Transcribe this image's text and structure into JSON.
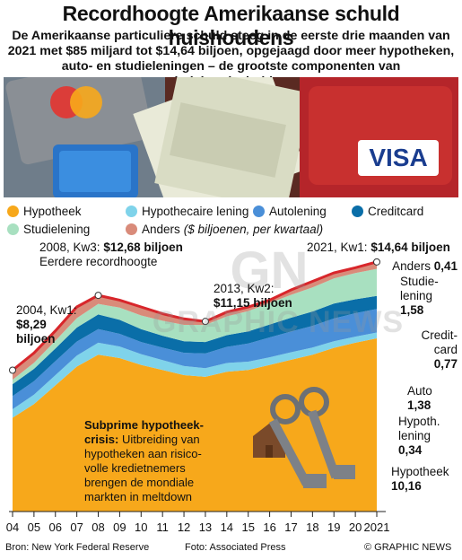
{
  "title": "Recordhoogte Amerikaanse schuld huishoudens",
  "subtitle": "De Amerikaanse particuliere schuld steeg in de eerste drie maanden van 2021 met $85 miljard tot $14,64 biljoen, opgejaagd door meer hypotheken, auto- en studieleningen – de grootste componenten van huishoudschulden",
  "legend": {
    "items": [
      {
        "label": "Hypotheek",
        "color": "#f7a81b"
      },
      {
        "label": "Hypothecaire lening",
        "color": "#7fd3ea"
      },
      {
        "label": "Autolening",
        "color": "#4a8fd8"
      },
      {
        "label": "Creditcard",
        "color": "#0a6ea8"
      },
      {
        "label": "Studielening",
        "color": "#a8e0c0"
      },
      {
        "label": "Anders",
        "color": "#d98b7a"
      }
    ],
    "note": "($ biljoenen, per kwartaal)"
  },
  "chart_data": {
    "type": "area",
    "x": [
      2004,
      2005,
      2006,
      2007,
      2008,
      2009,
      2010,
      2011,
      2012,
      2013,
      2014,
      2015,
      2016,
      2017,
      2018,
      2019,
      2020,
      2021
    ],
    "total": [
      8.29,
      9.3,
      10.6,
      12.0,
      12.68,
      12.4,
      12.0,
      11.6,
      11.3,
      11.15,
      11.7,
      12.0,
      12.4,
      13.0,
      13.5,
      14.0,
      14.3,
      14.64
    ],
    "series": [
      {
        "name": "Hypotheek",
        "values": [
          5.5,
          6.3,
          7.4,
          8.5,
          9.2,
          9.0,
          8.6,
          8.3,
          8.0,
          7.9,
          8.2,
          8.3,
          8.6,
          8.9,
          9.2,
          9.6,
          9.9,
          10.16
        ]
      },
      {
        "name": "Hypothecaire lening",
        "values": [
          0.5,
          0.55,
          0.6,
          0.65,
          0.7,
          0.68,
          0.63,
          0.58,
          0.53,
          0.51,
          0.51,
          0.49,
          0.45,
          0.44,
          0.42,
          0.39,
          0.36,
          0.34
        ]
      },
      {
        "name": "Autolening",
        "values": [
          0.77,
          0.8,
          0.82,
          0.82,
          0.8,
          0.74,
          0.71,
          0.73,
          0.78,
          0.86,
          0.95,
          1.06,
          1.16,
          1.22,
          1.27,
          1.33,
          1.37,
          1.38
        ]
      },
      {
        "name": "Creditcard",
        "values": [
          0.7,
          0.72,
          0.75,
          0.82,
          0.86,
          0.82,
          0.76,
          0.7,
          0.68,
          0.67,
          0.68,
          0.72,
          0.76,
          0.81,
          0.84,
          0.88,
          0.82,
          0.77
        ]
      },
      {
        "name": "Studielening",
        "values": [
          0.26,
          0.35,
          0.45,
          0.55,
          0.62,
          0.72,
          0.8,
          0.88,
          0.96,
          1.0,
          1.11,
          1.19,
          1.26,
          1.34,
          1.41,
          1.47,
          1.54,
          1.58
        ]
      },
      {
        "name": "Anders",
        "values": [
          0.56,
          0.58,
          0.58,
          0.66,
          0.5,
          0.44,
          0.5,
          0.41,
          0.35,
          0.21,
          0.25,
          0.24,
          0.17,
          0.29,
          0.36,
          0.33,
          0.31,
          0.41
        ]
      }
    ],
    "x_ticks": [
      "04",
      "05",
      "06",
      "07",
      "08",
      "09",
      "10",
      "11",
      "12",
      "13",
      "14",
      "15",
      "16",
      "17",
      "18",
      "19",
      "20",
      "2021"
    ],
    "ylim": [
      0,
      16
    ],
    "grid": false
  },
  "annotations": {
    "a2004_line1": "2004, Kw1:",
    "a2004_value": "$8,29",
    "a2004_unit": "biljoen",
    "a2008_prefix": "2008, Kw3:",
    "a2008_value": "$12,68 biljoen",
    "a2008_line2": "Eerdere recordhoogte",
    "a2013_line1": "2013, Kw2:",
    "a2013_line2": "$11,15 biljoen",
    "a2021_prefix": "2021, Kw1:",
    "a2021_value": "$14,64 biljoen",
    "crisis_title": "Subprime hypotheek-crisis:",
    "crisis_text": "Uitbreiding van hypotheken aan risico-volle kredietnemers brengen de mondiale markten in meltdown"
  },
  "end_labels": [
    {
      "label": "Anders",
      "value": "0,41"
    },
    {
      "label": "Studie-lening",
      "value": "1,58"
    },
    {
      "label": "Credit-card",
      "value": "0,77"
    },
    {
      "label": "Auto",
      "value": "1,38"
    },
    {
      "label": "Hypoth. lening",
      "value": "0,34"
    },
    {
      "label": "Hypotheek",
      "value": "10,16"
    }
  ],
  "footer": {
    "source": "Bron: New York Federal Reserve",
    "photo": "Foto: Associated Press",
    "credit": "© GRAPHIC NEWS"
  },
  "watermark": {
    "logo": "GN",
    "text": "GRAPHIC NEWS"
  }
}
